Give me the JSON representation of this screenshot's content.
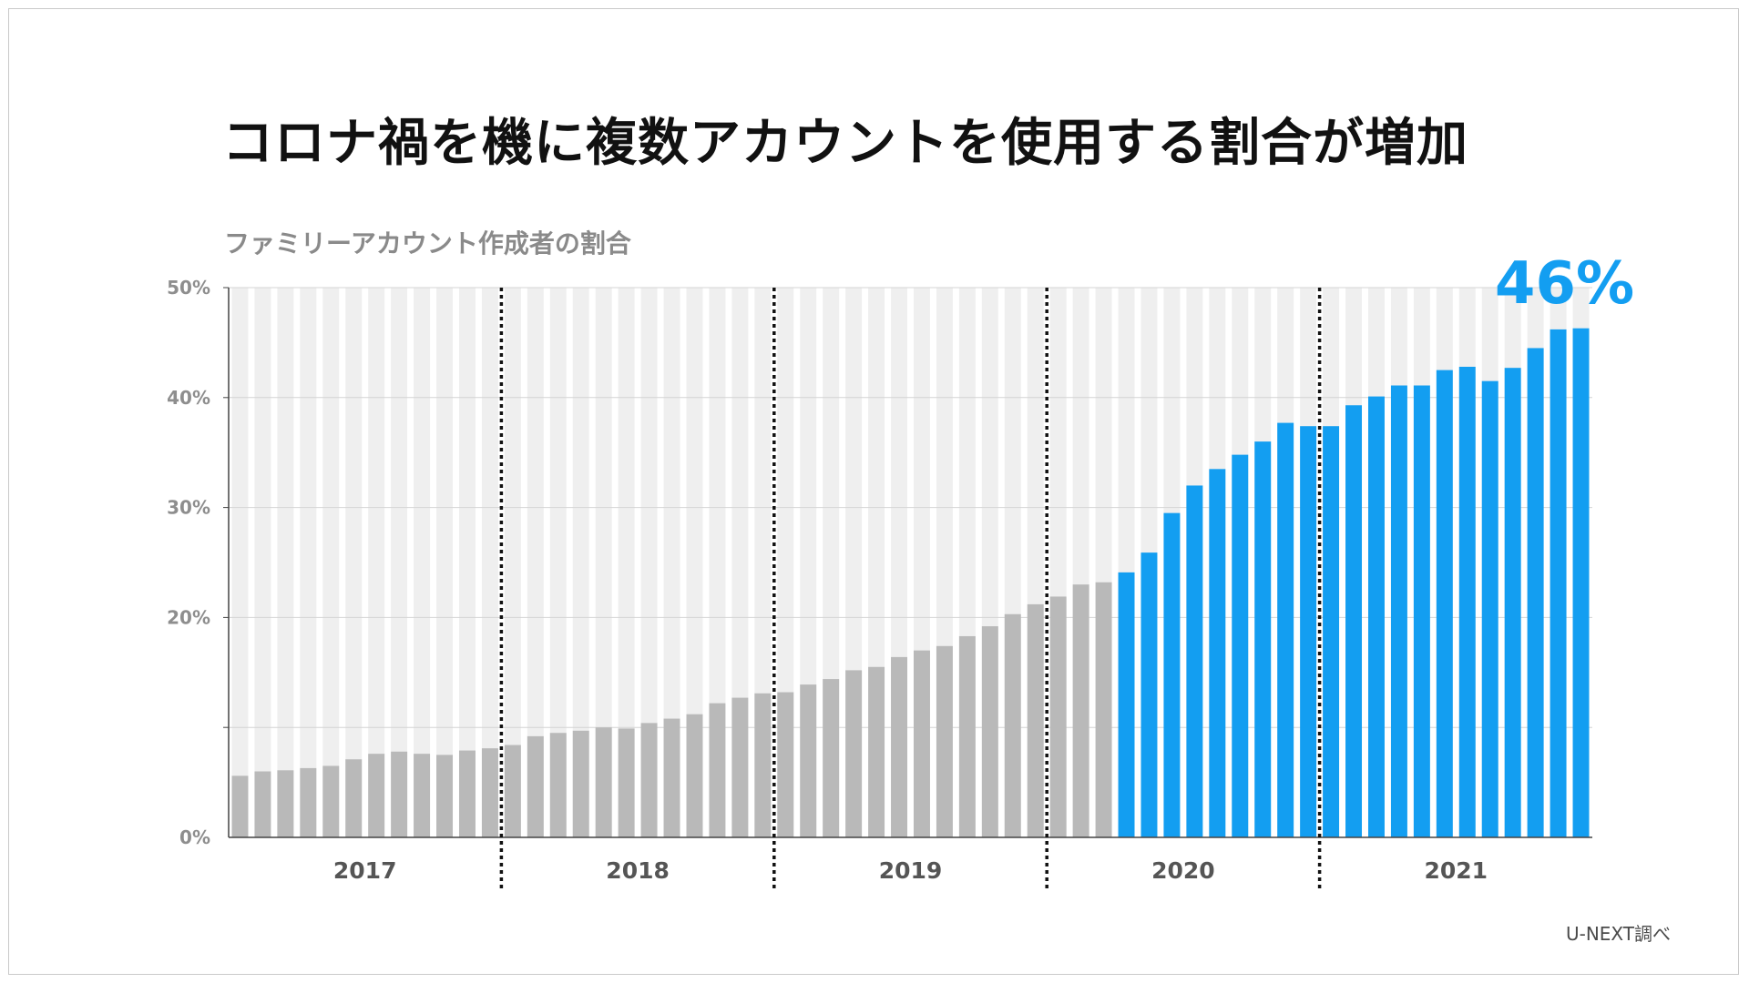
{
  "title": "コロナ禍を機に複数アカウントを使用する割合が増加",
  "source": "U-NEXT調べ",
  "chart_data": {
    "type": "bar",
    "title": "ファミリーアカウント作成者の割合",
    "xlabel": "",
    "ylabel": "",
    "ylim": [
      0,
      50
    ],
    "y_ticks": [
      {
        "value": 0,
        "label": "0%"
      },
      {
        "value": 20,
        "label": "20%"
      },
      {
        "value": 30,
        "label": "30%"
      },
      {
        "value": 40,
        "label": "40%"
      },
      {
        "value": 50,
        "label": "50%"
      }
    ],
    "minor_y_ticks": [
      10
    ],
    "years": [
      {
        "label": "2017",
        "start": 0,
        "end": 12
      },
      {
        "label": "2018",
        "start": 12,
        "end": 24
      },
      {
        "label": "2019",
        "start": 24,
        "end": 36
      },
      {
        "label": "2020",
        "start": 36,
        "end": 48
      },
      {
        "label": "2021",
        "start": 48,
        "end": 60
      }
    ],
    "highlight_from_index": 39,
    "highlight_label": "46%",
    "colors": {
      "base": "#b9b9b9",
      "highlight": "#139ef1",
      "background_bar": "#efefef",
      "axis": "#444444",
      "grid": "#d4d4d4"
    },
    "values": [
      5.6,
      6.0,
      6.1,
      6.3,
      6.5,
      7.1,
      7.6,
      7.8,
      7.6,
      7.5,
      7.9,
      8.1,
      8.4,
      9.2,
      9.5,
      9.7,
      10.0,
      9.9,
      10.4,
      10.8,
      11.2,
      12.2,
      12.7,
      13.1,
      13.2,
      13.9,
      14.4,
      15.2,
      15.5,
      16.4,
      17.0,
      17.4,
      18.3,
      19.2,
      20.3,
      21.2,
      21.9,
      23.0,
      23.2,
      24.1,
      25.9,
      29.5,
      32.0,
      33.5,
      34.8,
      36.0,
      37.7,
      37.4,
      37.4,
      39.3,
      40.1,
      41.1,
      41.1,
      42.5,
      42.8,
      41.5,
      42.7,
      44.5,
      46.2,
      46.3
    ]
  }
}
